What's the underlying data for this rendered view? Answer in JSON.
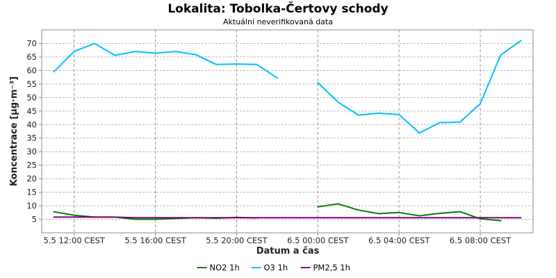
{
  "chart_data": {
    "type": "line",
    "title": "Lokalita: Tobolka-Čertovy schody",
    "subtitle": "Aktuální neverifikovaná data",
    "xlabel": "Datum a čas",
    "ylabel": "Koncentrace [µg·m⁻³]",
    "ylim": [
      0,
      75
    ],
    "yticks": [
      5,
      10,
      15,
      20,
      25,
      30,
      35,
      40,
      45,
      50,
      55,
      60,
      65,
      70
    ],
    "x_unit": "hours from first sample",
    "xlim": [
      -0.6,
      23.6
    ],
    "xticks": [
      {
        "x": 1,
        "label": "5.5 12:00 CEST"
      },
      {
        "x": 5,
        "label": "5.5 16:00 CEST"
      },
      {
        "x": 9,
        "label": "5.5 20:00 CEST"
      },
      {
        "x": 13,
        "label": "6.5 00:00 CEST"
      },
      {
        "x": 17,
        "label": "6.5 04:00 CEST"
      },
      {
        "x": 21,
        "label": "6.5 08:00 CEST"
      }
    ],
    "grid": true,
    "legend_position": "bottom",
    "series": [
      {
        "name": "NO2 1h",
        "color": "#008000",
        "values": [
          7.8,
          6.5,
          5.8,
          5.8,
          5.0,
          5.0,
          5.3,
          5.6,
          5.4,
          5.7,
          5.5,
          null,
          null,
          9.6,
          10.7,
          8.4,
          7.1,
          7.5,
          6.3,
          7.2,
          7.8,
          5.2,
          4.5
        ]
      },
      {
        "name": "O3 1h",
        "color": "#00bfff",
        "values": [
          59.5,
          67.0,
          70.0,
          65.6,
          67.0,
          66.4,
          67.0,
          65.8,
          62.2,
          62.4,
          62.2,
          57.2,
          null,
          55.5,
          48.3,
          43.5,
          44.2,
          43.7,
          36.9,
          40.7,
          40.9,
          47.7,
          65.7,
          71.0
        ]
      },
      {
        "name": "PM2,5 1h",
        "color": "#800080",
        "values": [
          5.8,
          5.8,
          5.8,
          5.8,
          5.6,
          5.6,
          5.6,
          5.6,
          5.6,
          5.6,
          5.6,
          5.6,
          5.6,
          5.6,
          5.6,
          5.6,
          5.6,
          5.6,
          5.6,
          5.6,
          5.6,
          5.6,
          5.6,
          5.6
        ]
      }
    ]
  }
}
